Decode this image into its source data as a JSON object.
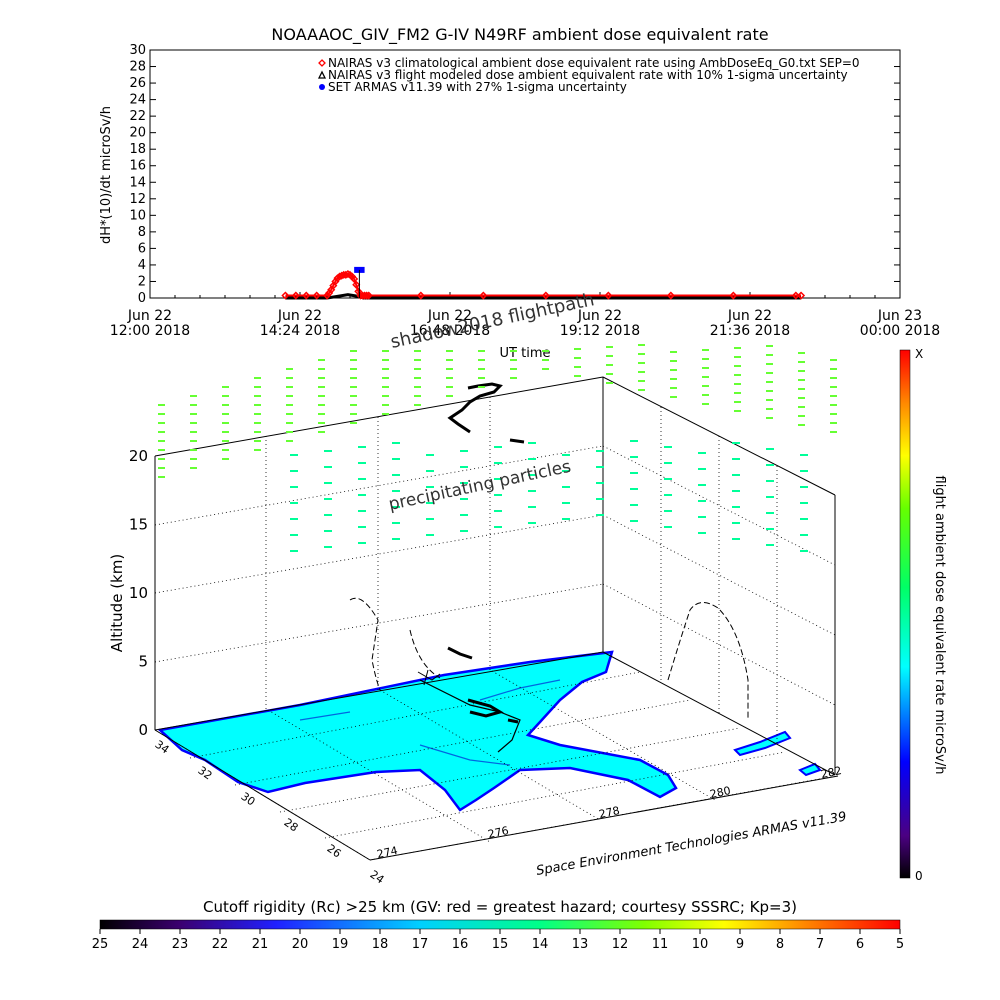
{
  "title": "NOAAAOC_GIV_FM2 G-IV    N49RF   ambient dose equivalent rate",
  "credit": "Space Environment Technologies ARMAS v11.39",
  "chart_data": [
    {
      "type": "line",
      "panel": "time-series",
      "ylabel": "dH*(10)/dt microSv/h",
      "xlabel": "UT time",
      "ylim": [
        0,
        30
      ],
      "yticks": [
        0,
        2,
        4,
        6,
        8,
        10,
        12,
        14,
        16,
        18,
        20,
        22,
        24,
        26,
        28,
        30
      ],
      "xticks": [
        {
          "t": 0,
          "line1": "Jun 22",
          "line2": "12:00 2018"
        },
        {
          "t": 144,
          "line1": "Jun 22",
          "line2": "14:24 2018"
        },
        {
          "t": 288,
          "line1": "Jun 22",
          "line2": "16:48 2018"
        },
        {
          "t": 432,
          "line1": "Jun 22",
          "line2": "19:12 2018"
        },
        {
          "t": 576,
          "line1": "Jun 22",
          "line2": "21:36 2018"
        },
        {
          "t": 720,
          "line1": "Jun 23",
          "line2": "00:00 2018"
        }
      ],
      "xlim_minutes": [
        0,
        720
      ],
      "legend": [
        {
          "label": "NAIRAS v3 climatological ambient dose equivalent rate using AmbDoseEq_G0.txt SEP=0",
          "marker": "diamond",
          "color": "#ff0000"
        },
        {
          "label": "NAIRAS v3 flight modeled dose ambient equivalent rate with 10% 1-sigma uncertainty",
          "marker": "triangle",
          "color": "#000000"
        },
        {
          "label": "SET ARMAS v11.39 with 27% 1-sigma uncertainty",
          "marker": "circle",
          "color": "#0000ff"
        }
      ],
      "legend_position": "top-right",
      "series": [
        {
          "name": "NAIRAS v3 climatological ambient dose equivalent rate using AmbDoseEq_G0.txt SEP=0",
          "color": "#ff0000",
          "x_minutes": [
            130,
            140,
            150,
            160,
            170,
            172,
            174,
            176,
            178,
            180,
            182,
            184,
            186,
            188,
            190,
            192,
            194,
            196,
            198,
            200,
            202,
            204,
            206,
            208,
            210,
            260,
            320,
            380,
            440,
            500,
            560,
            620,
            625
          ],
          "values": [
            0.3,
            0.3,
            0.3,
            0.3,
            0.3,
            0.6,
            1.0,
            1.5,
            2.0,
            2.4,
            2.6,
            2.7,
            2.8,
            2.8,
            2.9,
            2.8,
            2.6,
            2.3,
            1.6,
            0.8,
            0.3,
            0.3,
            0.3,
            0.3,
            0.3,
            0.3,
            0.3,
            0.3,
            0.3,
            0.3,
            0.3,
            0.3,
            0.3
          ]
        },
        {
          "name": "NAIRAS v3 flight modeled dose ambient equivalent rate with 10% 1-sigma uncertainty",
          "color": "#000000",
          "x_minutes": [
            130,
            170,
            180,
            190,
            200,
            205,
            210,
            300,
            400,
            500,
            625
          ],
          "values": [
            0.0,
            0.0,
            0.2,
            0.4,
            0.2,
            0.0,
            0.0,
            0.0,
            0.0,
            0.0,
            0.0
          ]
        },
        {
          "name": "SET ARMAS v11.39 with 27% 1-sigma uncertainty",
          "color": "#0000ff",
          "x_minutes": [
            196,
            200,
            204,
            206
          ],
          "values": [
            3.4,
            3.4,
            3.4,
            3.4
          ]
        }
      ]
    },
    {
      "type": "scatter",
      "panel": "3d-flight-view",
      "zlabel": "Altitude (km)",
      "zticks": [
        0,
        5,
        10,
        15,
        20
      ],
      "lat_ticks": [
        34,
        32,
        30,
        28,
        26,
        24
      ],
      "lon_ticks": [
        274,
        276,
        278,
        280,
        282
      ],
      "annotations": [
        "shadow2018 flightpath",
        "precipitating particles"
      ],
      "colorbar_label": "flight ambient dose equivalent rate microSv/h",
      "colorbar_top": "X",
      "colorbar_bottom": "0"
    },
    {
      "type": "heatmap",
      "panel": "cutoff-rigidity-colorbar",
      "title": "Cutoff rigidity (Rc) >25 km (GV: red = greatest hazard; courtesy SSSRC; Kp=3)",
      "tick_labels": [
        "25",
        "24",
        "23",
        "22",
        "21",
        "20",
        "19",
        "18",
        "17",
        "16",
        "15",
        "14",
        "13",
        "12",
        "11",
        "10",
        "9",
        "8",
        "7",
        "6",
        "5"
      ]
    }
  ],
  "colors": {
    "land": "#00ffff",
    "coast": "#0000ff",
    "particles_high": "#66ff33",
    "particles_low": "#00ff99"
  }
}
